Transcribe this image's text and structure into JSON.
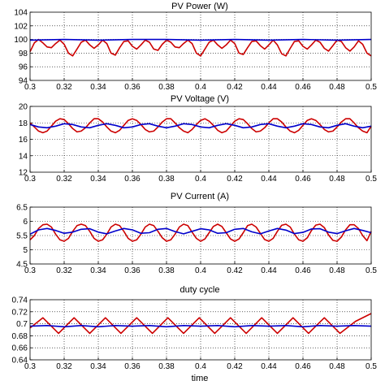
{
  "colors": {
    "series_a": "#cc0000",
    "series_b": "#0000cc",
    "grid": "#000000",
    "axes": "#000000"
  },
  "xlabel": "time",
  "chart_data": [
    {
      "type": "line",
      "title": "PV Power (W)",
      "xlim": [
        0.3,
        0.5
      ],
      "ylim": [
        94,
        104
      ],
      "xticks": [
        "0.3",
        "0.32",
        "0.34",
        "0.36",
        "0.38",
        "0.4",
        "0.42",
        "0.44",
        "0.46",
        "0.48",
        "0.5"
      ],
      "yticks": [
        "94",
        "96",
        "98",
        "100",
        "102",
        "104"
      ],
      "grid": true,
      "series": [
        {
          "color": "red",
          "x": [
            0.3,
            0.3025,
            0.305,
            0.3075,
            0.31,
            0.3125,
            0.315,
            0.3175,
            0.32,
            0.3225,
            0.325,
            0.3275,
            0.33,
            0.3325,
            0.335,
            0.3375,
            0.34,
            0.3425,
            0.345,
            0.3475,
            0.35,
            0.3525,
            0.355,
            0.3575,
            0.36,
            0.3625,
            0.365,
            0.3675,
            0.37,
            0.3725,
            0.375,
            0.3775,
            0.38,
            0.3825,
            0.385,
            0.3875,
            0.39,
            0.3925,
            0.395,
            0.3975,
            0.4,
            0.4025,
            0.405,
            0.4075,
            0.41,
            0.4125,
            0.415,
            0.4175,
            0.42,
            0.4225,
            0.425,
            0.4275,
            0.43,
            0.4325,
            0.435,
            0.4375,
            0.44,
            0.4425,
            0.445,
            0.4475,
            0.45,
            0.4525,
            0.455,
            0.4575,
            0.46,
            0.4625,
            0.465,
            0.4675,
            0.47,
            0.4725,
            0.475,
            0.4775,
            0.48,
            0.4825,
            0.485,
            0.4875,
            0.49,
            0.4925,
            0.495,
            0.4975,
            0.5
          ],
          "y": [
            98.2,
            99.5,
            100.0,
            99.5,
            98.9,
            98.8,
            99.4,
            99.9,
            99.3,
            98.0,
            97.6,
            98.6,
            99.6,
            99.9,
            99.2,
            98.7,
            99.2,
            99.9,
            99.4,
            98.0,
            97.7,
            98.8,
            99.7,
            99.8,
            99.0,
            98.6,
            99.2,
            99.9,
            99.6,
            98.6,
            98.4,
            99.3,
            99.9,
            99.6,
            98.9,
            98.8,
            99.4,
            99.9,
            99.4,
            98.0,
            97.6,
            98.6,
            99.6,
            99.9,
            99.2,
            98.7,
            99.2,
            99.9,
            99.4,
            98.0,
            97.8,
            98.8,
            99.7,
            99.8,
            99.1,
            98.6,
            99.2,
            99.9,
            99.2,
            97.9,
            97.6,
            98.7,
            99.7,
            99.8,
            99.0,
            98.6,
            99.2,
            99.9,
            99.6,
            98.7,
            98.3,
            99.1,
            99.9,
            99.7,
            98.8,
            98.3,
            98.9,
            99.8,
            99.3,
            98.0,
            97.6
          ]
        },
        {
          "color": "blue",
          "x": [
            0.3,
            0.32,
            0.34,
            0.36,
            0.38,
            0.4,
            0.42,
            0.44,
            0.46,
            0.48,
            0.5
          ],
          "y": [
            99.9,
            100.0,
            99.9,
            100.0,
            100.0,
            99.9,
            100.0,
            99.9,
            100.0,
            99.9,
            100.0
          ]
        }
      ]
    },
    {
      "type": "line",
      "title": "PV Voltage (V)",
      "xlim": [
        0.3,
        0.5
      ],
      "ylim": [
        12,
        20
      ],
      "xticks": [
        "0.3",
        "0.32",
        "0.34",
        "0.36",
        "0.38",
        "0.4",
        "0.42",
        "0.44",
        "0.46",
        "0.48",
        "0.5"
      ],
      "yticks": [
        "12",
        "14",
        "16",
        "18",
        "20"
      ],
      "grid": true,
      "series": [
        {
          "color": "red",
          "x": [
            0.3,
            0.3025,
            0.305,
            0.3075,
            0.31,
            0.3125,
            0.315,
            0.3175,
            0.32,
            0.3225,
            0.325,
            0.3275,
            0.33,
            0.3325,
            0.335,
            0.3375,
            0.34,
            0.3425,
            0.345,
            0.3475,
            0.35,
            0.3525,
            0.355,
            0.3575,
            0.36,
            0.3625,
            0.365,
            0.3675,
            0.37,
            0.3725,
            0.375,
            0.3775,
            0.38,
            0.3825,
            0.385,
            0.3875,
            0.39,
            0.3925,
            0.395,
            0.3975,
            0.4,
            0.4025,
            0.405,
            0.4075,
            0.41,
            0.4125,
            0.415,
            0.4175,
            0.42,
            0.4225,
            0.425,
            0.4275,
            0.43,
            0.4325,
            0.435,
            0.4375,
            0.44,
            0.4425,
            0.445,
            0.4475,
            0.45,
            0.4525,
            0.455,
            0.4575,
            0.46,
            0.4625,
            0.465,
            0.4675,
            0.47,
            0.4725,
            0.475,
            0.4775,
            0.48,
            0.4825,
            0.485,
            0.4875,
            0.49,
            0.4925,
            0.495,
            0.4975,
            0.5
          ],
          "y": [
            18.0,
            17.5,
            17.0,
            16.8,
            17.0,
            17.6,
            18.2,
            18.5,
            18.4,
            17.9,
            17.3,
            16.9,
            17.0,
            17.4,
            18.0,
            18.5,
            18.5,
            18.1,
            17.5,
            17.0,
            16.8,
            17.1,
            17.7,
            18.3,
            18.5,
            18.3,
            17.8,
            17.2,
            16.9,
            17.0,
            17.5,
            18.1,
            18.5,
            18.5,
            18.0,
            17.4,
            17.0,
            16.8,
            17.2,
            17.8,
            18.3,
            18.5,
            18.2,
            17.7,
            17.1,
            16.8,
            17.0,
            17.6,
            18.2,
            18.5,
            18.4,
            17.9,
            17.3,
            16.9,
            17.0,
            17.4,
            18.0,
            18.5,
            18.5,
            18.1,
            17.5,
            17.0,
            16.8,
            17.1,
            17.7,
            18.3,
            18.5,
            18.3,
            17.8,
            17.2,
            16.9,
            17.0,
            17.5,
            18.1,
            18.5,
            18.5,
            18.0,
            17.4,
            17.0,
            16.8,
            17.6
          ]
        },
        {
          "color": "blue",
          "x": [
            0.3,
            0.305,
            0.31,
            0.315,
            0.32,
            0.325,
            0.33,
            0.335,
            0.34,
            0.345,
            0.35,
            0.355,
            0.36,
            0.365,
            0.37,
            0.375,
            0.38,
            0.385,
            0.39,
            0.395,
            0.4,
            0.405,
            0.41,
            0.415,
            0.42,
            0.425,
            0.43,
            0.435,
            0.44,
            0.445,
            0.45,
            0.455,
            0.46,
            0.465,
            0.47,
            0.475,
            0.48,
            0.485,
            0.49,
            0.495,
            0.5
          ],
          "y": [
            17.8,
            17.5,
            17.4,
            17.6,
            17.9,
            17.8,
            17.5,
            17.4,
            17.7,
            17.9,
            17.7,
            17.4,
            17.5,
            17.8,
            17.9,
            17.6,
            17.4,
            17.6,
            17.9,
            17.8,
            17.5,
            17.4,
            17.7,
            17.9,
            17.7,
            17.4,
            17.5,
            17.8,
            17.9,
            17.6,
            17.4,
            17.6,
            17.9,
            17.8,
            17.5,
            17.4,
            17.7,
            17.9,
            17.6,
            17.4,
            17.6
          ]
        }
      ]
    },
    {
      "type": "line",
      "title": "PV Current (A)",
      "xlim": [
        0.3,
        0.5
      ],
      "ylim": [
        4.5,
        6.5
      ],
      "xticks": [
        "0.3",
        "0.32",
        "0.34",
        "0.36",
        "0.38",
        "0.4",
        "0.42",
        "0.44",
        "0.46",
        "0.48",
        "0.5"
      ],
      "yticks": [
        "4.5",
        "5",
        "5.5",
        "6",
        "6.5"
      ],
      "grid": true,
      "series": [
        {
          "color": "red",
          "x": [
            0.3,
            0.3025,
            0.305,
            0.3075,
            0.31,
            0.3125,
            0.315,
            0.3175,
            0.32,
            0.3225,
            0.325,
            0.3275,
            0.33,
            0.3325,
            0.335,
            0.3375,
            0.34,
            0.3425,
            0.345,
            0.3475,
            0.35,
            0.3525,
            0.355,
            0.3575,
            0.36,
            0.3625,
            0.365,
            0.3675,
            0.37,
            0.3725,
            0.375,
            0.3775,
            0.38,
            0.3825,
            0.385,
            0.3875,
            0.39,
            0.3925,
            0.395,
            0.3975,
            0.4,
            0.4025,
            0.405,
            0.4075,
            0.41,
            0.4125,
            0.415,
            0.4175,
            0.42,
            0.4225,
            0.425,
            0.4275,
            0.43,
            0.4325,
            0.435,
            0.4375,
            0.44,
            0.4425,
            0.445,
            0.4475,
            0.45,
            0.4525,
            0.455,
            0.4575,
            0.46,
            0.4625,
            0.465,
            0.4675,
            0.47,
            0.4725,
            0.475,
            0.4775,
            0.48,
            0.4825,
            0.485,
            0.4875,
            0.49,
            0.4925,
            0.495,
            0.4975,
            0.5
          ],
          "y": [
            5.35,
            5.5,
            5.75,
            5.88,
            5.9,
            5.8,
            5.55,
            5.35,
            5.3,
            5.4,
            5.65,
            5.85,
            5.9,
            5.85,
            5.65,
            5.4,
            5.3,
            5.35,
            5.55,
            5.8,
            5.9,
            5.85,
            5.65,
            5.4,
            5.3,
            5.35,
            5.55,
            5.8,
            5.9,
            5.85,
            5.65,
            5.42,
            5.3,
            5.35,
            5.55,
            5.8,
            5.9,
            5.85,
            5.62,
            5.4,
            5.3,
            5.38,
            5.6,
            5.82,
            5.9,
            5.82,
            5.6,
            5.38,
            5.3,
            5.38,
            5.6,
            5.85,
            5.9,
            5.8,
            5.58,
            5.36,
            5.3,
            5.4,
            5.65,
            5.86,
            5.9,
            5.8,
            5.55,
            5.35,
            5.3,
            5.42,
            5.68,
            5.87,
            5.9,
            5.78,
            5.52,
            5.33,
            5.3,
            5.45,
            5.7,
            5.88,
            5.88,
            5.75,
            5.5,
            5.32,
            5.65
          ]
        },
        {
          "color": "blue",
          "x": [
            0.3,
            0.305,
            0.31,
            0.315,
            0.32,
            0.325,
            0.33,
            0.335,
            0.34,
            0.345,
            0.35,
            0.355,
            0.36,
            0.365,
            0.37,
            0.375,
            0.38,
            0.385,
            0.39,
            0.395,
            0.4,
            0.405,
            0.41,
            0.415,
            0.42,
            0.425,
            0.43,
            0.435,
            0.44,
            0.445,
            0.45,
            0.455,
            0.46,
            0.465,
            0.47,
            0.475,
            0.48,
            0.485,
            0.49,
            0.495,
            0.5
          ],
          "y": [
            5.55,
            5.7,
            5.75,
            5.68,
            5.58,
            5.62,
            5.72,
            5.74,
            5.62,
            5.56,
            5.66,
            5.75,
            5.7,
            5.58,
            5.6,
            5.72,
            5.75,
            5.64,
            5.56,
            5.65,
            5.74,
            5.7,
            5.58,
            5.6,
            5.72,
            5.75,
            5.63,
            5.56,
            5.66,
            5.75,
            5.69,
            5.57,
            5.61,
            5.73,
            5.74,
            5.62,
            5.57,
            5.67,
            5.75,
            5.68,
            5.6
          ]
        }
      ]
    },
    {
      "type": "line",
      "title": "duty cycle",
      "xlim": [
        0.3,
        0.5
      ],
      "ylim": [
        0.64,
        0.74
      ],
      "xticks": [
        "0.3",
        "0.32",
        "0.34",
        "0.36",
        "0.38",
        "0.4",
        "0.42",
        "0.44",
        "0.46",
        "0.48",
        "0.5"
      ],
      "yticks": [
        "0.64",
        "0.66",
        "0.68",
        "0.7",
        "0.72",
        "0.74"
      ],
      "grid": true,
      "series": [
        {
          "color": "red",
          "x": [
            0.3,
            0.3075,
            0.3167,
            0.3258,
            0.335,
            0.3442,
            0.3533,
            0.3625,
            0.3717,
            0.3808,
            0.39,
            0.3992,
            0.4083,
            0.4175,
            0.4267,
            0.4358,
            0.445,
            0.4542,
            0.4633,
            0.4725,
            0.4817,
            0.4908,
            0.5
          ],
          "y": [
            0.693,
            0.71,
            0.684,
            0.71,
            0.684,
            0.71,
            0.684,
            0.71,
            0.684,
            0.71,
            0.684,
            0.71,
            0.684,
            0.71,
            0.684,
            0.71,
            0.684,
            0.71,
            0.684,
            0.71,
            0.684,
            0.704,
            0.717
          ]
        },
        {
          "color": "blue",
          "x": [
            0.3,
            0.31,
            0.32,
            0.33,
            0.34,
            0.35,
            0.36,
            0.37,
            0.38,
            0.39,
            0.4,
            0.41,
            0.42,
            0.43,
            0.44,
            0.45,
            0.46,
            0.47,
            0.48,
            0.49,
            0.5
          ],
          "y": [
            0.696,
            0.697,
            0.695,
            0.697,
            0.695,
            0.697,
            0.696,
            0.697,
            0.695,
            0.697,
            0.696,
            0.697,
            0.695,
            0.697,
            0.696,
            0.697,
            0.695,
            0.697,
            0.696,
            0.697,
            0.696
          ]
        }
      ]
    }
  ]
}
